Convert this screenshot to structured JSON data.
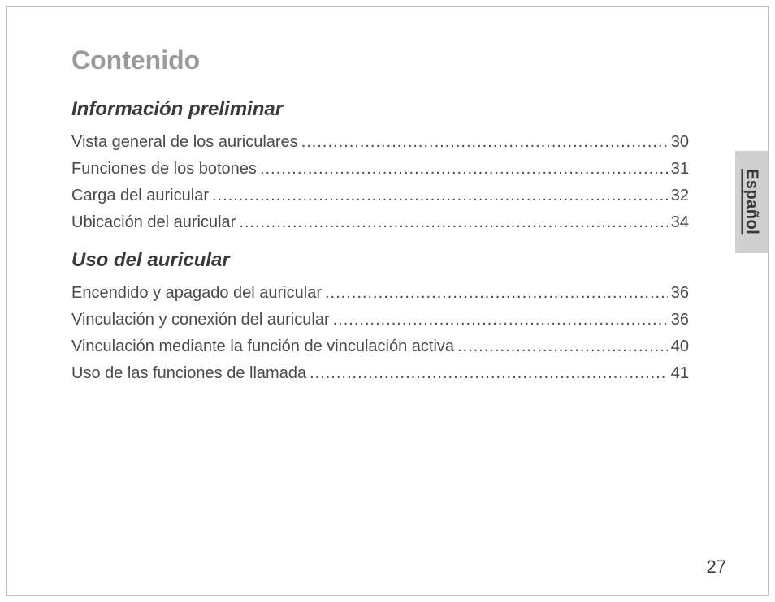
{
  "title": "Contenido",
  "sections": [
    {
      "heading": "Información preliminar",
      "entries": [
        {
          "label": "Vista general de los auriculares",
          "page": "30"
        },
        {
          "label": "Funciones de los botones",
          "page": "31"
        },
        {
          "label": "Carga del auricular",
          "page": "32"
        },
        {
          "label": "Ubicación del auricular",
          "page": "34"
        }
      ]
    },
    {
      "heading": "Uso del auricular",
      "entries": [
        {
          "label": "Encendido y apagado del auricular",
          "page": "36"
        },
        {
          "label": "Vinculación y conexión del auricular",
          "page": "36"
        },
        {
          "label": "Vinculación mediante la función de vinculación activa",
          "page": "40"
        },
        {
          "label": "Uso de las funciones de llamada",
          "page": "41"
        }
      ]
    }
  ],
  "sideTab": "Español",
  "pageNumber": "27",
  "colors": {
    "titleColor": "#9a9a9a",
    "headingColor": "#3a3a3a",
    "entryColor": "#4a4a4a",
    "tabBackground": "#cfcfcf",
    "borderColor": "#bfbfbf",
    "pageBackground": "#ffffff"
  },
  "fonts": {
    "titleSize": 32,
    "headingSize": 24,
    "entrySize": 20,
    "tabSize": 20,
    "pageNumSize": 22
  }
}
